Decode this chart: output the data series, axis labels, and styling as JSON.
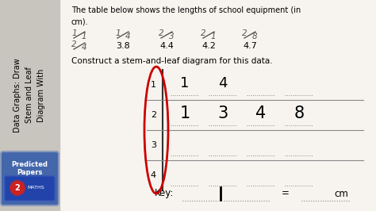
{
  "bg_color": "#f0ede8",
  "left_panel_color": "#c8c4be",
  "left_panel_text": "Data Graphs: Draw\nStem and Leaf\nDiagram With",
  "title_text": "The table below shows the lengths of school equipment (in\ncm).",
  "construct_text": "Construct a stem-and-leaf diagram for this data.",
  "stems": [
    "1",
    "2",
    "3",
    "4"
  ],
  "leaves_row0": [
    "1",
    "4",
    "",
    ""
  ],
  "leaves_row1": [
    "1",
    "3",
    "4",
    "8"
  ],
  "leaves_row2": [
    "",
    "",
    "",
    ""
  ],
  "leaves_row3": [
    "",
    "",
    "",
    ""
  ],
  "key_text": "Key:",
  "key_equals": "=",
  "key_unit": "cm",
  "ellipse_color": "#cc0000",
  "main_bg": "#f7f4ef",
  "stem_line_color": "#333333",
  "horiz_line_color": "#888888",
  "dot_color": "#888888"
}
